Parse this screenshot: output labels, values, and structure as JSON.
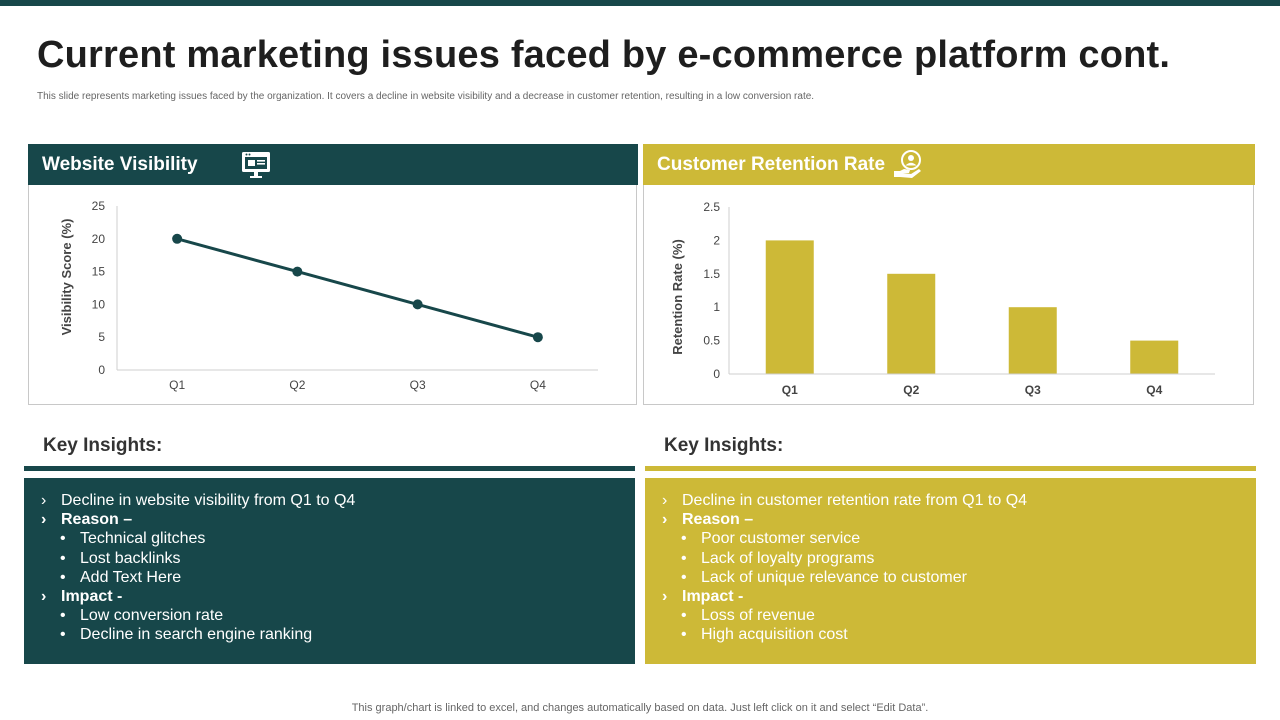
{
  "header": {
    "title": "Current marketing issues faced by e-commerce platform cont.",
    "subtitle": "This slide represents marketing issues faced by the organization. It covers a decline in website visibility and a decrease in customer retention, resulting in a low conversion rate."
  },
  "colors": {
    "teal": "#17474a",
    "gold": "#cdb937"
  },
  "panels": {
    "left": {
      "title": "Website Visibility",
      "icon": "monitor-icon"
    },
    "right": {
      "title": "Customer Retention Rate",
      "icon": "customer-care-icon"
    }
  },
  "chart_data": [
    {
      "type": "line",
      "title": "Website Visibility",
      "categories": [
        "Q1",
        "Q2",
        "Q3",
        "Q4"
      ],
      "values": [
        20,
        15,
        10,
        5
      ],
      "yticks": [
        "0",
        "5",
        "10",
        "15",
        "20",
        "25"
      ],
      "xlabel": "",
      "ylabel": "Visibility Score (%)",
      "ylim": [
        0,
        25
      ],
      "color": "#17474a"
    },
    {
      "type": "bar",
      "title": "Customer Retention Rate",
      "categories": [
        "Q1",
        "Q2",
        "Q3",
        "Q4"
      ],
      "values": [
        2,
        1.5,
        1,
        0.5
      ],
      "yticks": [
        "0",
        "0.5",
        "1",
        "1.5",
        "2",
        "2.5"
      ],
      "xlabel": "",
      "ylabel": "Retention Rate (%)",
      "ylim": [
        0,
        2.5
      ],
      "color": "#cdb937"
    }
  ],
  "insights": {
    "left": {
      "title": "Key Insights:",
      "lines": [
        {
          "marker": "›",
          "text": "Decline in website visibility from Q1 to Q4"
        },
        {
          "marker": "›",
          "text": "Reason –"
        },
        {
          "marker": "•",
          "text": "Technical glitches"
        },
        {
          "marker": "•",
          "text": "Lost backlinks"
        },
        {
          "marker": "•",
          "text": "Add Text Here"
        },
        {
          "marker": "›",
          "text": "Impact -"
        },
        {
          "marker": "•",
          "text": "Low conversion rate"
        },
        {
          "marker": "•",
          "text": "Decline in search engine ranking"
        }
      ]
    },
    "right": {
      "title": "Key Insights:",
      "lines": [
        {
          "marker": "›",
          "text": "Decline in customer retention rate from Q1 to Q4"
        },
        {
          "marker": "›",
          "text": "Reason –"
        },
        {
          "marker": "•",
          "text": "Poor customer service"
        },
        {
          "marker": "•",
          "text": "Lack of loyalty programs"
        },
        {
          "marker": "•",
          "text": "Lack of unique relevance to customer"
        },
        {
          "marker": "›",
          "text": "Impact -"
        },
        {
          "marker": "•",
          "text": "Loss of revenue"
        },
        {
          "marker": "•",
          "text": "High acquisition cost"
        }
      ]
    }
  },
  "footer": {
    "note": "This graph/chart is linked to excel, and changes automatically based on data. Just left click on it and select “Edit Data”."
  }
}
